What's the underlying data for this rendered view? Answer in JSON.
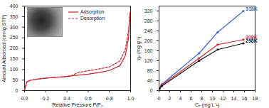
{
  "chart_data": [
    {
      "type": "line",
      "x_label": "Relative Pressure P/P₀",
      "y_label": "Amount Adsorbed (cm³/g STP)",
      "x": [
        0,
        0.02,
        0.05,
        0.1,
        0.2,
        0.3,
        0.4,
        0.45,
        0.5,
        0.6,
        0.7,
        0.8,
        0.9,
        0.95,
        0.98,
        0.995
      ],
      "series": [
        {
          "name": "Adsorption",
          "color": "#c8232c",
          "line_style": "solid",
          "values": [
            2,
            40,
            48,
            53,
            59,
            63,
            67,
            70,
            73,
            78,
            85,
            95,
            118,
            165,
            245,
            370
          ]
        },
        {
          "name": "Desorption",
          "color": "#c8232c",
          "line_style": "dashed",
          "values": [
            2,
            40,
            48,
            53,
            59,
            63,
            67,
            72,
            85,
            94,
            102,
            112,
            140,
            195,
            280,
            370
          ]
        }
      ],
      "xlim": [
        0,
        1
      ],
      "xticks": [
        {
          "value": 0,
          "label": "0.0"
        },
        {
          "value": 0.2,
          "label": "0.2"
        },
        {
          "value": 0.4,
          "label": "0.4"
        },
        {
          "value": 0.6,
          "label": "0.6"
        },
        {
          "value": 0.8,
          "label": "0.8"
        },
        {
          "value": 1,
          "label": "1.0"
        }
      ],
      "ylim": [
        0,
        400
      ],
      "yticks": [
        0,
        50,
        100,
        150,
        200,
        250,
        300,
        350,
        400
      ],
      "grid": false,
      "legend": "top"
    },
    {
      "type": "line",
      "x_label": "Cₑ (mg L⁻¹)",
      "y_label": "qₑ (mg g⁻¹)",
      "x": [
        0.1,
        0.5,
        7.5,
        11,
        15.8
      ],
      "series": [
        {
          "name": "318K",
          "color": "#3f66d6",
          "marker": "circle",
          "values": [
            12,
            25,
            150,
            235,
            320
          ]
        },
        {
          "name": "308K",
          "color": "#c8232c",
          "marker": "circle",
          "values": [
            10,
            22,
            130,
            185,
            205
          ]
        },
        {
          "name": "298K",
          "color": "#111111",
          "marker": "circle",
          "values": [
            8,
            18,
            120,
            165,
            190
          ]
        }
      ],
      "xlim": [
        0,
        18
      ],
      "xticks": [
        0,
        2,
        4,
        6,
        8,
        10,
        12,
        14,
        16,
        18
      ],
      "ylim": [
        0,
        340
      ],
      "yticks": [
        0,
        40,
        80,
        120,
        160,
        200,
        240,
        280,
        320
      ],
      "grid": false
    }
  ]
}
